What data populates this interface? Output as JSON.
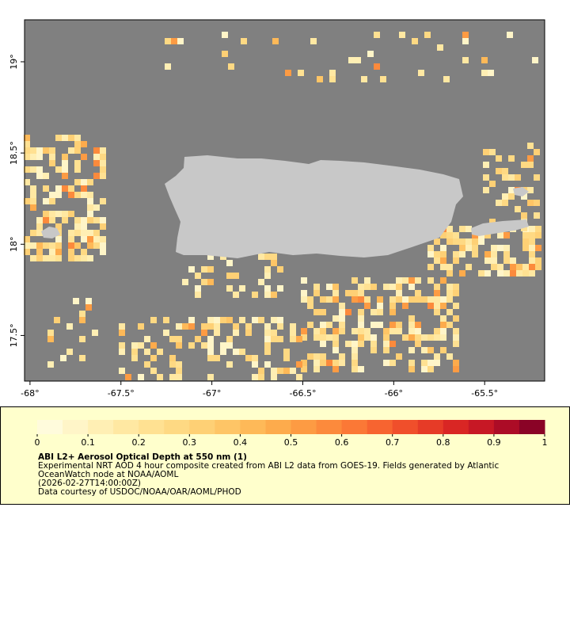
{
  "chart_data": {
    "type": "map",
    "xlim": [
      -68.03,
      -65.17
    ],
    "ylim": [
      17.25,
      19.23
    ],
    "xticks": [
      {
        "value": -68,
        "label": "-68°"
      },
      {
        "value": -67.5,
        "label": "-67.5°"
      },
      {
        "value": -67,
        "label": "-67°"
      },
      {
        "value": -66.5,
        "label": "-66.5°"
      },
      {
        "value": -66,
        "label": "-66°"
      },
      {
        "value": -65.5,
        "label": "-65.5°"
      }
    ],
    "yticks": [
      {
        "value": 17.5,
        "label": "17.5°"
      },
      {
        "value": 18,
        "label": "18°"
      },
      {
        "value": 18.5,
        "label": "18.5°"
      },
      {
        "value": 19,
        "label": "19°"
      }
    ],
    "colorbar": {
      "lim": [
        0,
        1
      ],
      "ticks": [
        0,
        0.1,
        0.2,
        0.3,
        0.4,
        0.5,
        0.6,
        0.7,
        0.8,
        0.9,
        1
      ],
      "colors": [
        "#fffbdc",
        "#fff5c8",
        "#ffefb4",
        "#ffe8a2",
        "#ffe192",
        "#fed983",
        "#fed075",
        "#fec566",
        "#feb958",
        "#fdab4c",
        "#fd9b43",
        "#fc8a3c",
        "#fb7836",
        "#f76430",
        "#f04f2b",
        "#e63b27",
        "#d92624",
        "#c71825",
        "#ac0c26",
        "#8a0326"
      ]
    },
    "title": "ABI L2+ Aerosol Optical Depth at 550 nm (1)",
    "description": "Experimental NRT AOD 4 hour composite created from ABI L2 data from GOES-19. Fields generated by Atlantic",
    "description_line2": "OceanWatch node at NOAA/AOML",
    "timestamp": "(2026-02-27T14:00:00Z)",
    "credit": "Data courtesy of USDOC/NOAA/OAR/AOML/PHOD"
  }
}
